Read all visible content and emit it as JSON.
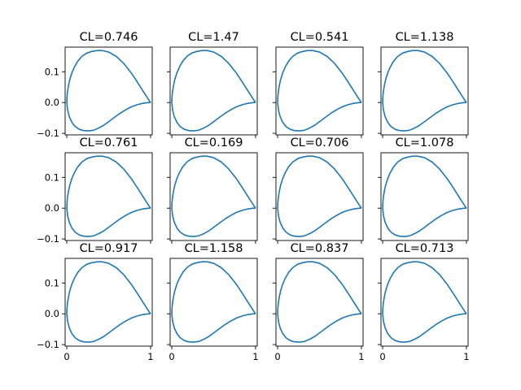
{
  "chart_data": {
    "type": "line",
    "layout": {
      "rows": 3,
      "cols": 4
    },
    "series_color": "#1f77b4",
    "x_ticks": [
      0,
      1
    ],
    "y_ticks": [
      0.1,
      0.0,
      -0.1
    ],
    "x_tick_labels": [
      "0",
      "1"
    ],
    "y_tick_labels": [
      "0.1",
      "0.0",
      "−0.1"
    ],
    "xlim": [
      -0.02,
      1.02
    ],
    "ylim": [
      -0.105,
      0.18
    ],
    "shape": {
      "upper": {
        "x": [
          1,
          0.97,
          0.92,
          0.85,
          0.77,
          0.68,
          0.59,
          0.5,
          0.42,
          0.36,
          0.3,
          0.24,
          0.18,
          0.13,
          0.09,
          0.06,
          0.035,
          0.02,
          0.008,
          0.002,
          0
        ],
        "y": [
          0,
          0.012,
          0.033,
          0.063,
          0.096,
          0.127,
          0.15,
          0.164,
          0.169,
          0.169,
          0.166,
          0.161,
          0.15,
          0.134,
          0.115,
          0.096,
          0.074,
          0.055,
          0.035,
          0.016,
          0
        ]
      },
      "lower": {
        "x": [
          0,
          0.01,
          0.03,
          0.06,
          0.1,
          0.15,
          0.2,
          0.26,
          0.32,
          0.38,
          0.44,
          0.5,
          0.56,
          0.63,
          0.7,
          0.77,
          0.84,
          0.9,
          0.95,
          0.98,
          1
        ],
        "y": [
          0,
          -0.025,
          -0.046,
          -0.064,
          -0.078,
          -0.087,
          -0.091,
          -0.092,
          -0.09,
          -0.083,
          -0.074,
          -0.062,
          -0.05,
          -0.036,
          -0.024,
          -0.014,
          -0.007,
          -0.003,
          -0.001,
          0,
          0
        ]
      }
    },
    "panels": [
      {
        "title": "CL=0.746"
      },
      {
        "title": "CL=1.47"
      },
      {
        "title": "CL=0.541"
      },
      {
        "title": "CL=1.138"
      },
      {
        "title": "CL=0.761"
      },
      {
        "title": "CL=0.169"
      },
      {
        "title": "CL=0.706"
      },
      {
        "title": "CL=1.078"
      },
      {
        "title": "CL=0.917"
      },
      {
        "title": "CL=1.158"
      },
      {
        "title": "CL=0.837"
      },
      {
        "title": "CL=0.713"
      }
    ]
  }
}
